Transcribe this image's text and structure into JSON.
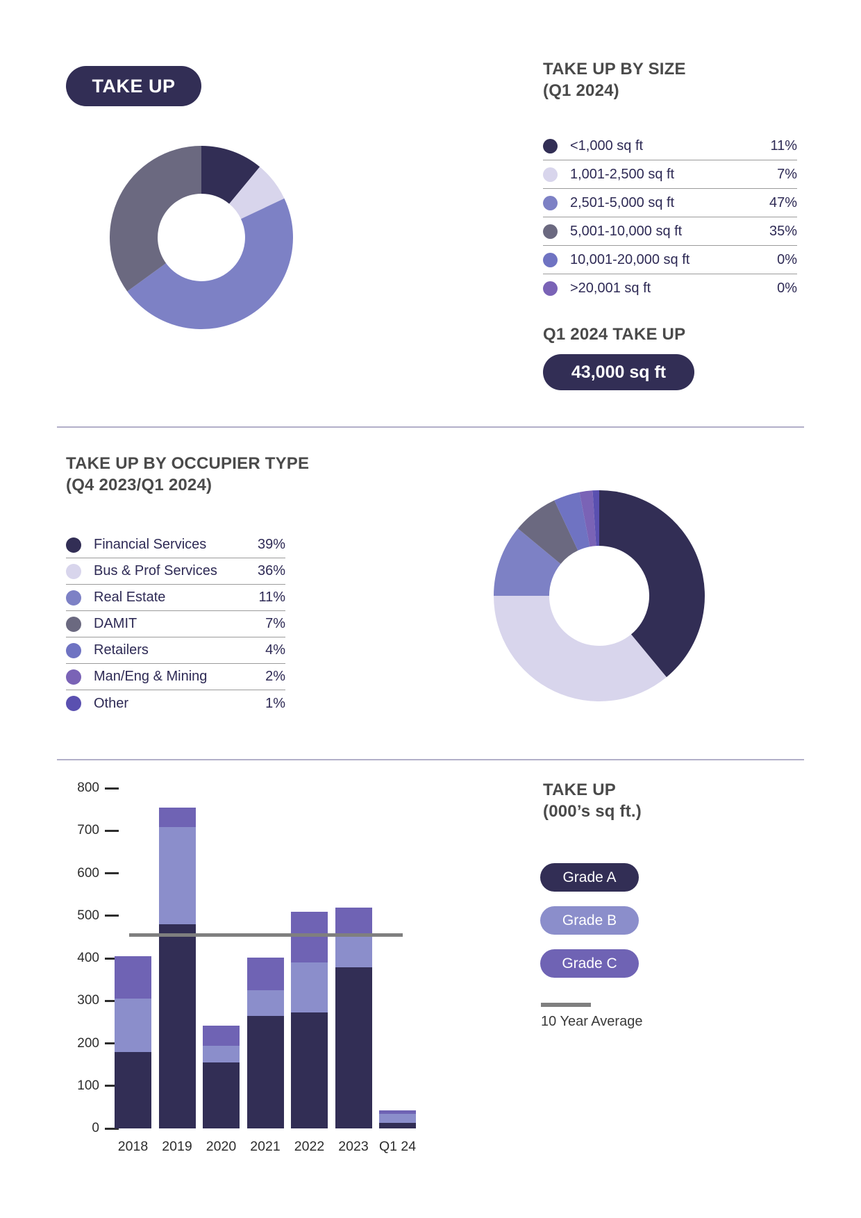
{
  "badge": "TAKE UP",
  "size_section": {
    "title_line1": "TAKE UP BY SIZE",
    "title_line2": "(Q1 2024)",
    "total_heading": "Q1 2024 TAKE UP",
    "total_value": "43,000 sq ft"
  },
  "occupier_section": {
    "title_line1": "TAKE UP BY OCCUPIER TYPE",
    "title_line2": "(Q4 2023/Q1 2024)"
  },
  "bars_section": {
    "title_line1": "TAKE UP",
    "title_line2": "(000’s sq ft.)",
    "average_label": "10 Year Average",
    "average_color": "#7f7f7f"
  },
  "chart_data": [
    {
      "id": "size_donut",
      "type": "pie",
      "donut": true,
      "title": "TAKE UP BY SIZE (Q1 2024)",
      "labels": [
        "<1,000 sq ft",
        "1,001-2,500 sq ft",
        "2,501-5,000 sq ft",
        "5,001-10,000 sq ft",
        "10,001-20,000 sq ft",
        ">20,001 sq ft"
      ],
      "values": [
        11,
        7,
        47,
        35,
        0,
        0
      ],
      "unit": "%",
      "colors": [
        "#322e55",
        "#d8d5ec",
        "#7d81c5",
        "#6b6980",
        "#6f73c2",
        "#7a63b6"
      ],
      "legend_position": "right",
      "start_angle": "12 o'clock, clockwise"
    },
    {
      "id": "occupier_donut",
      "type": "pie",
      "donut": true,
      "title": "TAKE UP BY OCCUPIER TYPE (Q4 2023/Q1 2024)",
      "labels": [
        "Financial Services",
        "Bus & Prof Services",
        "Real Estate",
        "DAMIT",
        "Retailers",
        "Man/Eng & Mining",
        "Other"
      ],
      "values": [
        39,
        36,
        11,
        7,
        4,
        2,
        1
      ],
      "unit": "%",
      "colors": [
        "#322e55",
        "#d8d5ec",
        "#7d81c5",
        "#6b6980",
        "#6f73c2",
        "#7a63b6",
        "#5a50b0"
      ],
      "legend_position": "left",
      "start_angle": "12 o'clock, clockwise"
    },
    {
      "id": "takeup_bars",
      "type": "bar",
      "stacked": true,
      "title": "TAKE UP (000's sq ft.)",
      "categories": [
        "2018",
        "2019",
        "2020",
        "2021",
        "2022",
        "2023",
        "Q1 24"
      ],
      "series": [
        {
          "name": "Grade A",
          "color": "#322e55",
          "values": [
            180,
            480,
            155,
            264,
            272,
            378,
            13
          ]
        },
        {
          "name": "Grade B",
          "color": "#8b8ecb",
          "values": [
            125,
            228,
            39,
            61,
            118,
            76,
            21
          ]
        },
        {
          "name": "Grade C",
          "color": "#6f63b4",
          "values": [
            100,
            47,
            48,
            77,
            120,
            66,
            9
          ]
        }
      ],
      "average_line": {
        "label": "10 Year Average",
        "value": 455,
        "color": "#7f7f7f"
      },
      "xlabel": "",
      "ylabel": "000's sq ft",
      "ylim": [
        0,
        800
      ],
      "yticks": [
        0,
        100,
        200,
        300,
        400,
        500,
        600,
        700,
        800
      ],
      "grid": false
    }
  ]
}
